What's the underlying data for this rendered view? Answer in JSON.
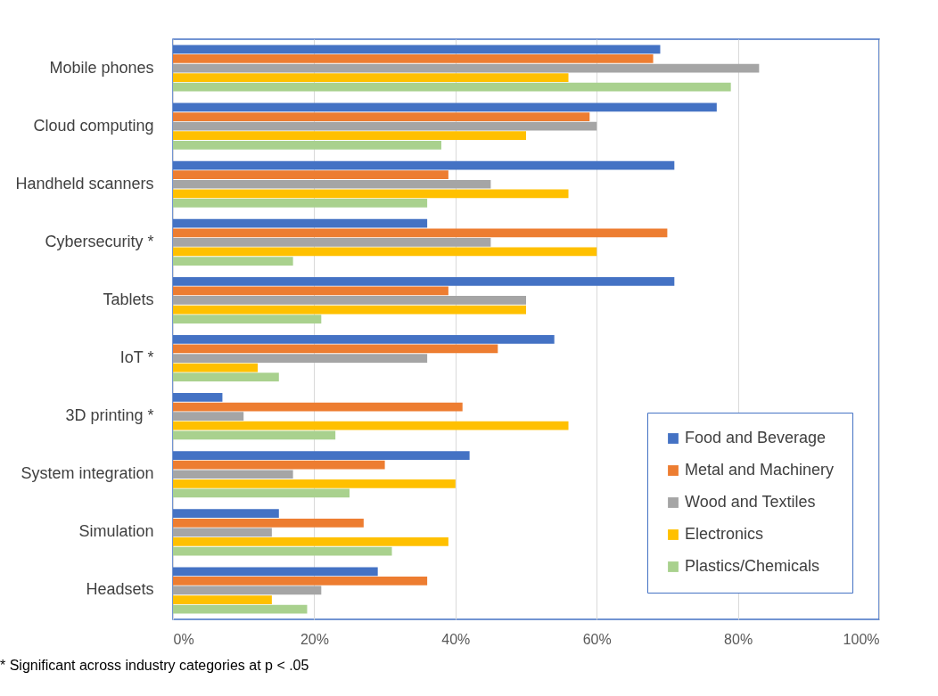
{
  "chart_data": {
    "type": "bar",
    "orientation": "horizontal",
    "categories": [
      "Mobile phones",
      "Cloud computing",
      "Handheld scanners",
      "Cybersecurity *",
      "Tablets",
      "IoT *",
      "3D printing *",
      "System integration",
      "Simulation",
      "Headsets"
    ],
    "series": [
      {
        "name": "Food and Beverage",
        "color": "#4472c4",
        "values": [
          69,
          77,
          71,
          36,
          71,
          54,
          7,
          42,
          15,
          29
        ]
      },
      {
        "name": "Metal and Machinery",
        "color": "#ed7d31",
        "values": [
          68,
          59,
          39,
          70,
          39,
          46,
          41,
          30,
          27,
          36
        ]
      },
      {
        "name": "Wood and Textiles",
        "color": "#a5a5a5",
        "values": [
          83,
          60,
          45,
          45,
          50,
          36,
          10,
          17,
          14,
          21
        ]
      },
      {
        "name": "Electronics",
        "color": "#ffc000",
        "values": [
          56,
          50,
          56,
          60,
          50,
          12,
          56,
          40,
          39,
          14
        ]
      },
      {
        "name": "Plastics/Chemicals",
        "color": "#a9d18e",
        "values": [
          79,
          38,
          36,
          17,
          21,
          15,
          23,
          25,
          31,
          19
        ]
      }
    ],
    "xlim": [
      0,
      100
    ],
    "xticks": [
      {
        "value": 0,
        "label": "0%"
      },
      {
        "value": 20,
        "label": "20%"
      },
      {
        "value": 40,
        "label": "40%"
      },
      {
        "value": 60,
        "label": "60%"
      },
      {
        "value": 80,
        "label": "80%"
      },
      {
        "value": 100,
        "label": "100%"
      }
    ],
    "grid": "x",
    "legend": "bottom right",
    "annotations": [
      "* Significant across industry categories at p < .05"
    ]
  }
}
